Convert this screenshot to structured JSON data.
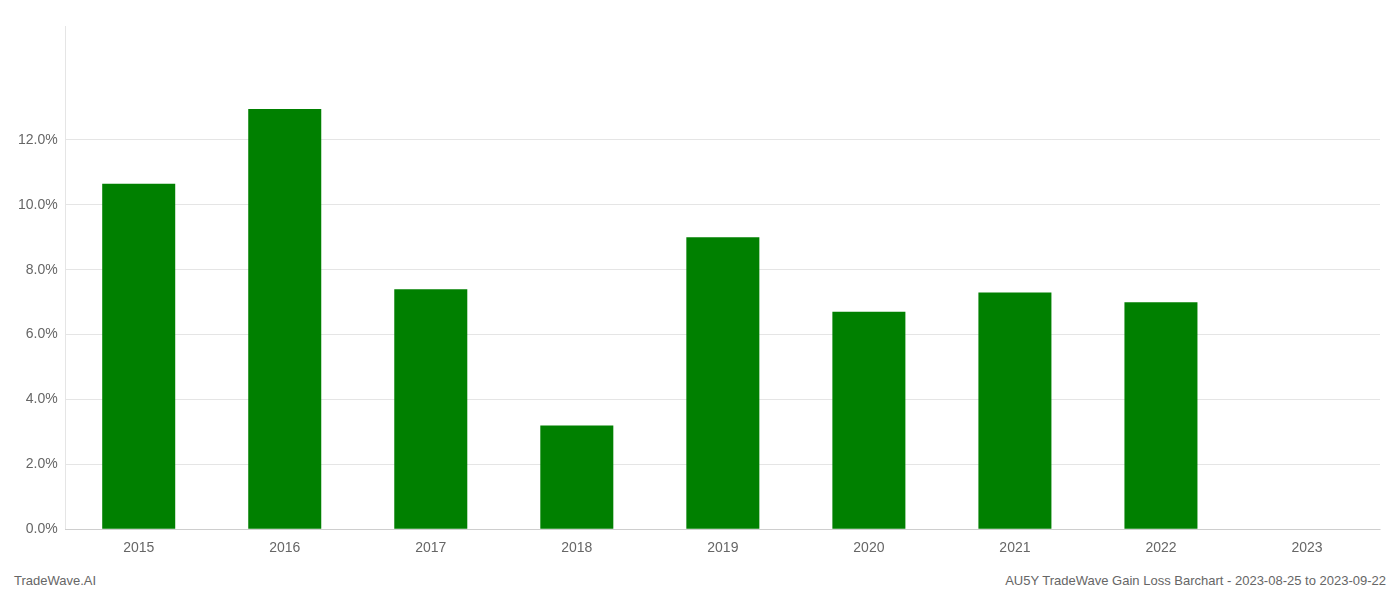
{
  "chart_data": {
    "type": "bar",
    "categories": [
      "2015",
      "2016",
      "2017",
      "2018",
      "2019",
      "2020",
      "2021",
      "2022",
      "2023"
    ],
    "values": [
      0.1065,
      0.1295,
      0.074,
      0.032,
      0.09,
      0.067,
      0.073,
      0.07,
      null
    ],
    "color": "#008000",
    "ylim": [
      0,
      0.155
    ],
    "yticks": [
      {
        "value": 0.0,
        "label": "0.0%"
      },
      {
        "value": 0.02,
        "label": "2.0%"
      },
      {
        "value": 0.04,
        "label": "4.0%"
      },
      {
        "value": 0.06,
        "label": "6.0%"
      },
      {
        "value": 0.08,
        "label": "8.0%"
      },
      {
        "value": 0.1,
        "label": "10.0%"
      },
      {
        "value": 0.12,
        "label": "12.0%"
      }
    ],
    "grid": true,
    "annotations": [
      "TradeWave.AI",
      "AU5Y TradeWave Gain Loss Barchart - 2023-08-25 to 2023-09-22"
    ]
  }
}
